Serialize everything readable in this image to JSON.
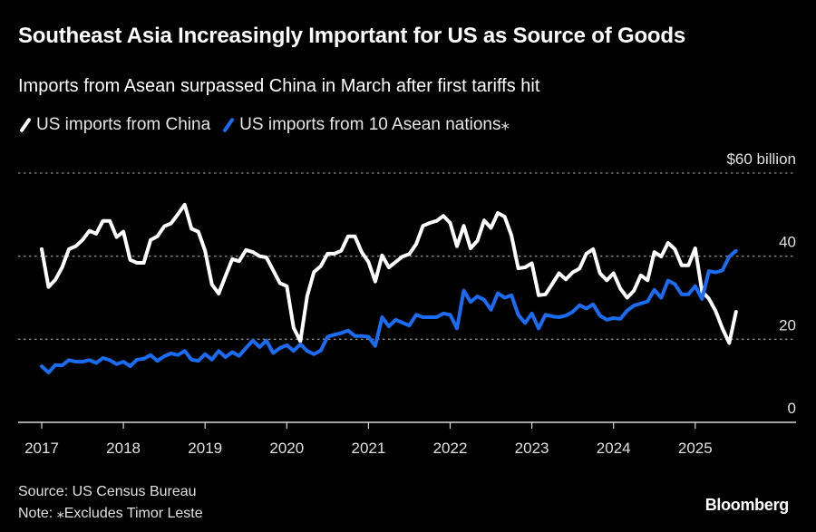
{
  "header": {
    "title": "Southeast Asia Increasingly Important for US as Source of Goods",
    "subtitle": "Imports from Asean surpassed China in March after first tariffs hit"
  },
  "footer": {
    "source": "Source: US Census Bureau",
    "note": "Note: ⁎Excludes Timor Leste",
    "brand": "Bloomberg"
  },
  "colors": {
    "background": "#000000",
    "china": "#ffffff",
    "asean": "#1a6df2",
    "grid": "#8a8a8a",
    "axis": "#d9d9d9"
  },
  "chart_data": {
    "type": "line",
    "title": "Southeast Asia Increasingly Important for US as Source of Goods",
    "subtitle": "Imports from Asean surpassed China in March after first tariffs hit",
    "xlabel": "",
    "ylabel": "$ billion",
    "x_start": "2017-01",
    "x_end": "2025-07",
    "frequency": "monthly",
    "xlim": [
      2017.0,
      2025.9
    ],
    "ylim": [
      0,
      60
    ],
    "x_ticks": [
      "2017",
      "2018",
      "2019",
      "2020",
      "2021",
      "2022",
      "2023",
      "2024",
      "2025"
    ],
    "y_ticks": [
      {
        "value": 60,
        "label": "$60 billion"
      },
      {
        "value": 40,
        "label": "40"
      },
      {
        "value": 20,
        "label": "20"
      },
      {
        "value": 0,
        "label": "0"
      }
    ],
    "grid": "horizontal-dashed",
    "legend_position": "top-left",
    "series": [
      {
        "name": "US imports from China",
        "color": "#ffffff",
        "values": [
          41.7,
          32.6,
          34.3,
          37.3,
          41.7,
          42.4,
          43.9,
          46.1,
          45.4,
          48.5,
          48.5,
          44.6,
          45.9,
          39.1,
          38.4,
          38.4,
          43.9,
          44.8,
          47.2,
          47.9,
          50.1,
          52.4,
          46.6,
          45.9,
          41.3,
          33.2,
          31.0,
          35.2,
          39.3,
          38.8,
          41.5,
          41.0,
          40.0,
          39.7,
          36.6,
          33.5,
          32.8,
          22.8,
          19.5,
          30.4,
          36.2,
          37.6,
          40.6,
          40.6,
          41.3,
          44.8,
          44.8,
          41.0,
          38.6,
          33.9,
          40.2,
          37.3,
          38.6,
          39.9,
          40.5,
          42.9,
          47.3,
          48.0,
          48.5,
          49.7,
          48.0,
          42.4,
          47.3,
          41.9,
          43.7,
          48.6,
          46.8,
          50.4,
          49.5,
          45.0,
          37.1,
          37.3,
          38.3,
          30.6,
          30.8,
          33.3,
          35.9,
          34.4,
          36.1,
          37.0,
          40.6,
          41.7,
          35.9,
          34.2,
          35.9,
          32.2,
          30.0,
          31.7,
          35.4,
          34.2,
          41.0,
          39.9,
          43.2,
          41.7,
          37.8,
          37.8,
          41.9,
          31.5,
          29.8,
          26.8,
          22.6,
          19.1,
          26.6
        ]
      },
      {
        "name": "US imports from 10 Asean nations⁎",
        "color": "#1a6df2",
        "values": [
          13.5,
          12.0,
          13.8,
          13.7,
          15.0,
          14.6,
          14.6,
          15.0,
          14.3,
          15.5,
          15.0,
          14.0,
          14.6,
          13.5,
          15.1,
          15.3,
          16.2,
          14.8,
          15.9,
          16.6,
          16.2,
          17.2,
          15.1,
          14.8,
          16.4,
          15.1,
          17.2,
          15.7,
          16.9,
          16.0,
          17.9,
          19.7,
          18.1,
          19.7,
          16.7,
          17.9,
          18.6,
          17.2,
          18.8,
          17.2,
          16.4,
          17.3,
          20.6,
          21.1,
          21.5,
          22.1,
          20.8,
          20.8,
          20.6,
          18.4,
          25.3,
          23.1,
          24.7,
          24.0,
          23.3,
          25.9,
          25.3,
          25.3,
          25.3,
          26.2,
          25.9,
          22.6,
          31.7,
          29.0,
          30.3,
          29.5,
          27.1,
          31.1,
          30.0,
          30.6,
          25.9,
          23.9,
          26.2,
          22.6,
          25.9,
          25.5,
          25.3,
          25.7,
          26.6,
          28.2,
          27.4,
          28.4,
          25.7,
          24.7,
          25.1,
          24.9,
          26.9,
          28.1,
          28.6,
          29.1,
          31.9,
          30.0,
          34.1,
          33.3,
          30.8,
          30.8,
          32.8,
          29.7,
          36.4,
          36.1,
          36.6,
          39.9,
          41.3
        ]
      }
    ]
  }
}
